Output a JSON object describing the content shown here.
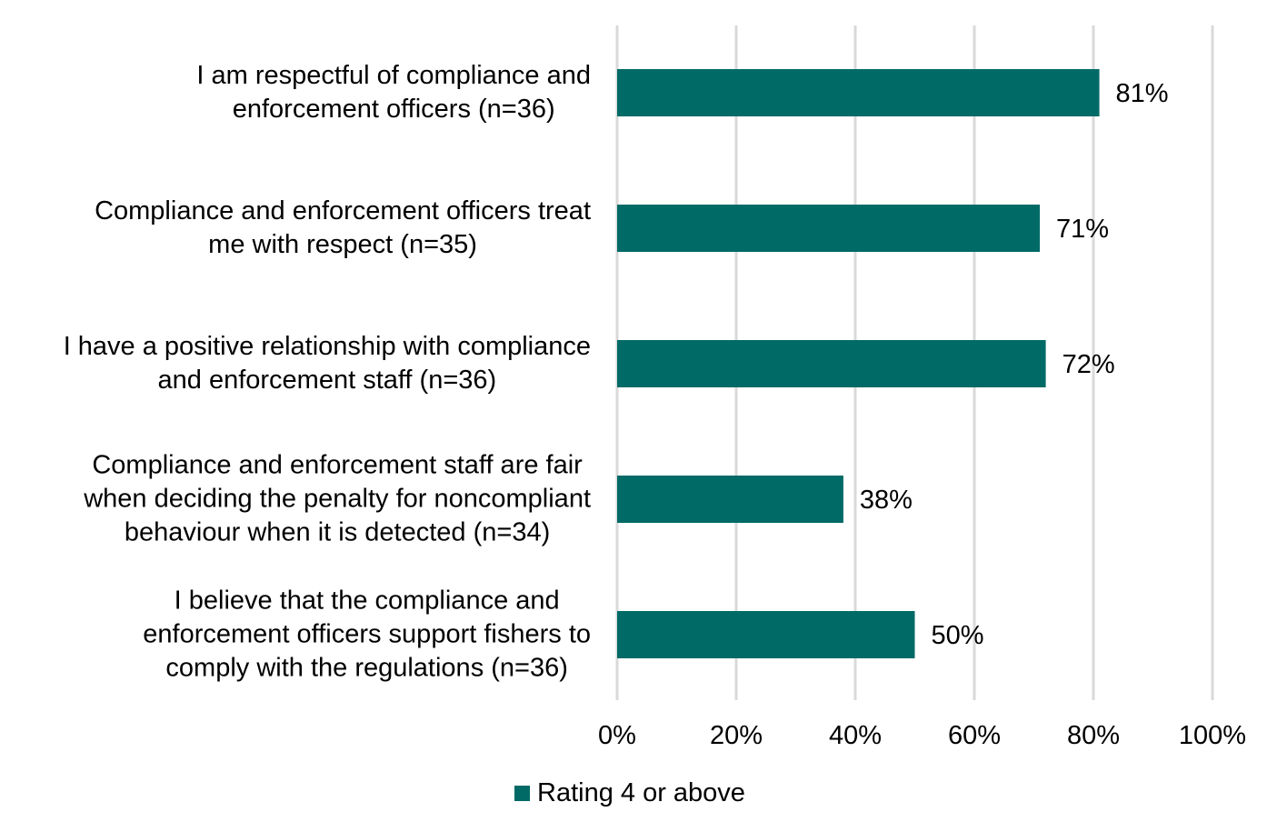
{
  "chart_data": {
    "type": "bar",
    "orientation": "horizontal",
    "title": "",
    "xlabel": "",
    "ylabel": "",
    "categories": [
      "I am respectful of compliance and\nenforcement officers (n=36)",
      "Compliance and enforcement officers treat\nme with respect (n=35)",
      "I have a positive relationship with compliance\nand enforcement staff (n=36)",
      "Compliance and enforcement staff are fair\nwhen deciding the penalty for noncompliant\nbehaviour when it is detected (n=34)",
      "I believe that the compliance and\nenforcement officers support fishers to\ncomply with the regulations (n=36)"
    ],
    "series": [
      {
        "name": "Rating 4 or above",
        "values": [
          81,
          71,
          72,
          38,
          50
        ],
        "color": "#006A66"
      }
    ],
    "data_labels": [
      "81%",
      "71%",
      "72%",
      "38%",
      "50%"
    ],
    "xlim": [
      0,
      100
    ],
    "xticks": [
      0,
      20,
      40,
      60,
      80,
      100
    ],
    "xtick_labels": [
      "0%",
      "20%",
      "40%",
      "60%",
      "80%",
      "100%"
    ],
    "grid": "vertical",
    "grid_color": "#D9D9D9",
    "legend": {
      "position": "bottom",
      "entries": [
        "Rating 4 or above"
      ]
    }
  }
}
